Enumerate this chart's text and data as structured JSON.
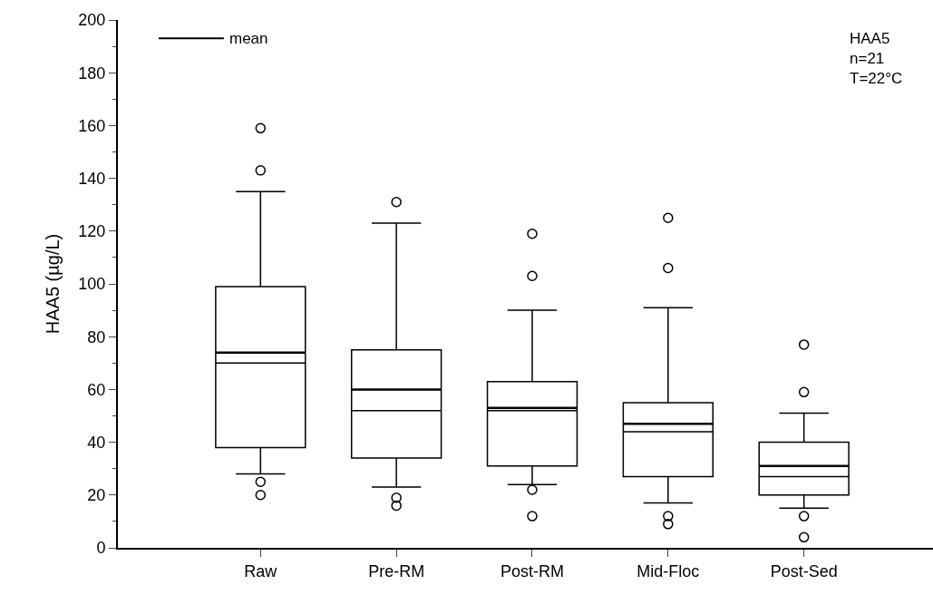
{
  "chart_data": {
    "type": "box",
    "ylabel": "HAA5 (µg/L)",
    "categories": [
      "Raw",
      "Pre-RM",
      "Post-RM",
      "Mid-Floc",
      "Post-Sed"
    ],
    "boxes": [
      {
        "low": 28,
        "q1": 38,
        "median": 70,
        "q3": 99,
        "high": 135,
        "mean": 74,
        "outliers": [
          159,
          143,
          25,
          20
        ]
      },
      {
        "low": 23,
        "q1": 34,
        "median": 52,
        "q3": 75,
        "high": 123,
        "mean": 60,
        "outliers": [
          131,
          19,
          16
        ]
      },
      {
        "low": 24,
        "q1": 31,
        "median": 52,
        "q3": 63,
        "high": 90,
        "mean": 53,
        "outliers": [
          119,
          103,
          22,
          12
        ]
      },
      {
        "low": 17,
        "q1": 27,
        "median": 44,
        "q3": 55,
        "high": 91,
        "mean": 47,
        "outliers": [
          125,
          106,
          12,
          9
        ]
      },
      {
        "low": 15,
        "q1": 20,
        "median": 27,
        "q3": 40,
        "high": 51,
        "mean": 31,
        "outliers": [
          77,
          59,
          12,
          4
        ]
      }
    ],
    "color": "#000000",
    "ylim": [
      0,
      200
    ],
    "yticks": [
      0,
      20,
      40,
      60,
      80,
      100,
      120,
      140,
      160,
      180,
      200
    ],
    "annotations": [
      "mean",
      "HAA5\nn=21\nT=22°C"
    ]
  }
}
